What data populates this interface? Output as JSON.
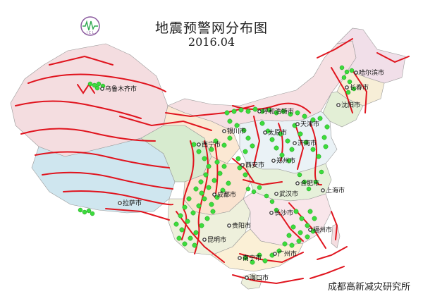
{
  "header": {
    "title": "地震预警网分布图",
    "date": "2016.04",
    "logo_text": "I C L"
  },
  "footer": {
    "institute": "成都高新减灾研究所"
  },
  "colors": {
    "fault_line": "#e0141e",
    "station_dot": "#3cdc3c",
    "station_dot_edge": "#1a9a1a",
    "city_dot": "#222222"
  },
  "cities": [
    {
      "id": "haerbin",
      "name": "哈尔滨市"
    },
    {
      "id": "changchun",
      "name": "长春市"
    },
    {
      "id": "shenyang",
      "name": "沈阳市"
    },
    {
      "id": "huhehaote",
      "name": "呼和浩特市"
    },
    {
      "id": "tianjin",
      "name": "天津市"
    },
    {
      "id": "taiyuan",
      "name": "太原市"
    },
    {
      "id": "jinan",
      "name": "济南市"
    },
    {
      "id": "yinchuan",
      "name": "银川市"
    },
    {
      "id": "xining",
      "name": "西宁市"
    },
    {
      "id": "xian",
      "name": "西安市"
    },
    {
      "id": "zhengzhou",
      "name": "郑州市"
    },
    {
      "id": "hefei",
      "name": "合肥市"
    },
    {
      "id": "shanghai",
      "name": "上海市"
    },
    {
      "id": "wuhan",
      "name": "武汉市"
    },
    {
      "id": "chengdu",
      "name": "成都市"
    },
    {
      "id": "changsha",
      "name": "长沙市"
    },
    {
      "id": "guiyang",
      "name": "贵阳市"
    },
    {
      "id": "fuzhou",
      "name": "福州市"
    },
    {
      "id": "kunming",
      "name": "昆明市"
    },
    {
      "id": "guangzhou",
      "name": "广州市"
    },
    {
      "id": "nanning",
      "name": "南宁市"
    },
    {
      "id": "haikou",
      "name": "海口市"
    },
    {
      "id": "lasa",
      "name": "拉萨市"
    },
    {
      "id": "wulumuqi",
      "name": "乌鲁木齐市"
    }
  ]
}
